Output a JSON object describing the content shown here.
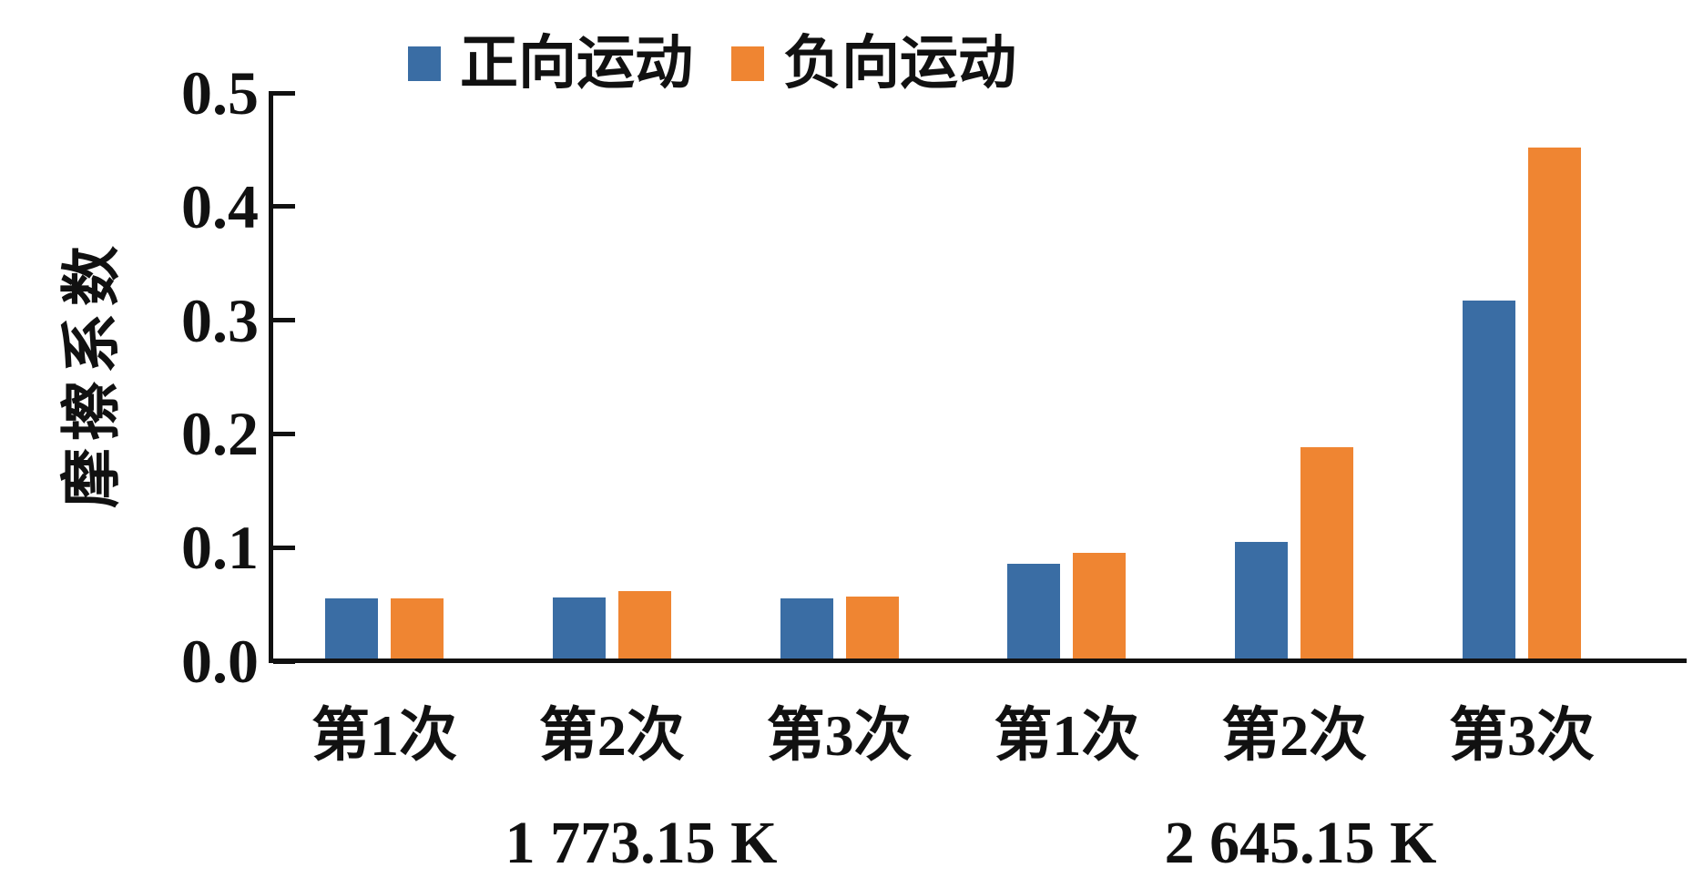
{
  "chart_data": {
    "type": "bar",
    "title": "",
    "ylabel": "摩擦系数",
    "xlabel": "",
    "ylim": [
      0,
      0.5
    ],
    "yticks": [
      "0.0",
      "0.1",
      "0.2",
      "0.3",
      "0.4",
      "0.5"
    ],
    "grid": false,
    "legend_position": "top-center",
    "categories": [
      "第1次",
      "第2次",
      "第3次",
      "第1次",
      "第2次",
      "第3次"
    ],
    "groups": [
      {
        "label": "1 773.15 K",
        "category_indexes": [
          0,
          1,
          2
        ]
      },
      {
        "label": "2 645.15 K",
        "category_indexes": [
          3,
          4,
          5
        ]
      }
    ],
    "series": [
      {
        "name": "正向运动",
        "color": "#3a6da4",
        "values": [
          0.055,
          0.056,
          0.055,
          0.086,
          0.105,
          0.317
        ]
      },
      {
        "name": "负向运动",
        "color": "#ef8532",
        "values": [
          0.055,
          0.062,
          0.057,
          0.095,
          0.188,
          0.452
        ]
      }
    ]
  },
  "colors": {
    "axis": "#111111",
    "background": "#ffffff",
    "forward_blue": "#3a6da4",
    "negative_orange": "#ef8532"
  }
}
